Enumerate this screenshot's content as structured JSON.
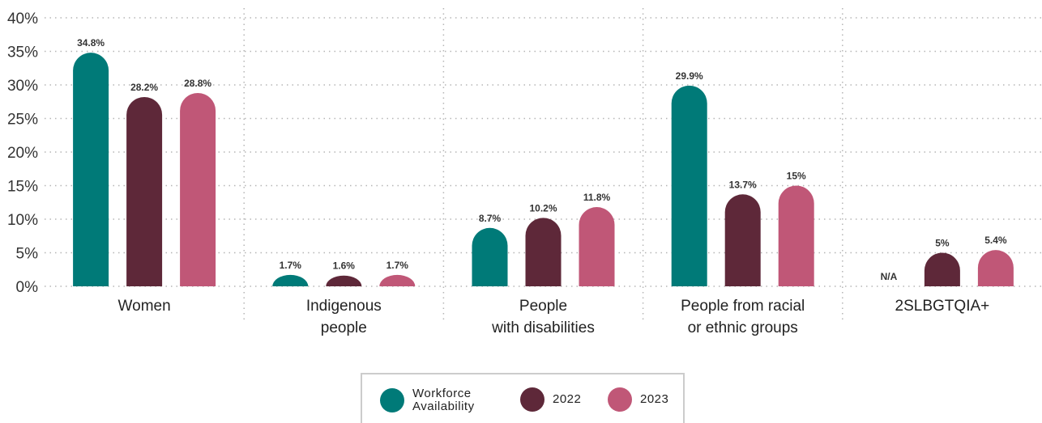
{
  "chart_data": {
    "type": "bar",
    "categories": [
      [
        "Women"
      ],
      [
        "Indigenous",
        "people"
      ],
      [
        "People",
        "with disabilities"
      ],
      [
        "People from racial",
        "or ethnic groups"
      ],
      [
        "2SLBGTQIA+"
      ]
    ],
    "series": [
      {
        "name": "Workforce Availability",
        "color": "#007a78",
        "values": [
          34.8,
          1.7,
          8.7,
          29.9,
          null
        ],
        "labels": [
          "34.8%",
          "1.7%",
          "8.7%",
          "29.9%",
          "N/A"
        ]
      },
      {
        "name": "2022",
        "color": "#5e2839",
        "values": [
          28.2,
          1.6,
          10.2,
          13.7,
          5
        ],
        "labels": [
          "28.2%",
          "1.6%",
          "10.2%",
          "13.7%",
          "5%"
        ]
      },
      {
        "name": "2023",
        "color": "#c05777",
        "values": [
          28.8,
          1.7,
          11.8,
          15,
          5.4
        ],
        "labels": [
          "28.8%",
          "1.7%",
          "11.8%",
          "15%",
          "5.4%"
        ]
      }
    ],
    "ylim": [
      0,
      40
    ],
    "yticks": [
      "0%",
      "5%",
      "10%",
      "15%",
      "20%",
      "25%",
      "30%",
      "35%",
      "40%"
    ],
    "xlabel": "",
    "ylabel": "",
    "grid": "dotted",
    "legend": "bottom-center"
  },
  "legend": {
    "items": [
      {
        "label_line1": "Workforce",
        "label_line2": "Availability",
        "color": "#007a78"
      },
      {
        "label_line1": "2022",
        "label_line2": "",
        "color": "#5e2839"
      },
      {
        "label_line1": "2023",
        "label_line2": "",
        "color": "#c05777"
      }
    ]
  }
}
